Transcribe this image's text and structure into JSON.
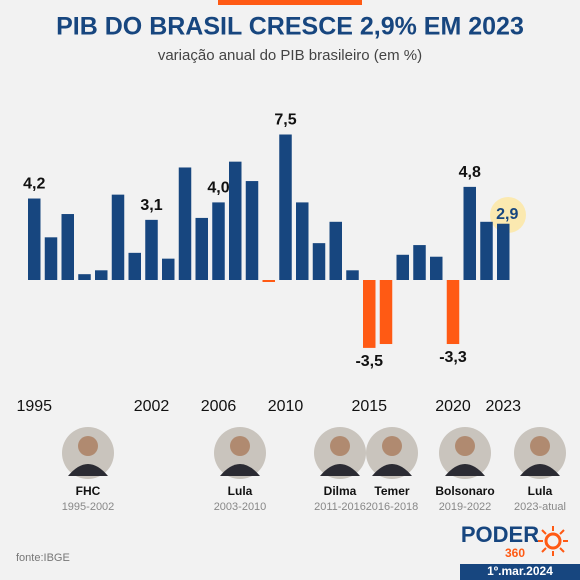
{
  "chart_data": {
    "type": "bar",
    "title": "PIB DO BRASIL CRESCE 2,9% EM 2023",
    "subtitle": "variação anual do PIB brasileiro (em %)",
    "categories": [
      "1995",
      null,
      null,
      null,
      null,
      null,
      null,
      "2002",
      null,
      null,
      null,
      "2006",
      null,
      null,
      null,
      "2010",
      null,
      null,
      null,
      null,
      "2015",
      null,
      null,
      null,
      null,
      "2020",
      null,
      null,
      "2023"
    ],
    "values": [
      4.2,
      2.2,
      3.4,
      0.3,
      0.5,
      4.4,
      1.4,
      3.1,
      1.1,
      5.8,
      3.2,
      4.0,
      6.1,
      5.1,
      -0.1,
      7.5,
      4.0,
      1.9,
      3.0,
      0.5,
      -3.5,
      -3.3,
      1.3,
      1.8,
      1.2,
      -3.3,
      4.8,
      3.0,
      2.9
    ],
    "value_labels": [
      "4,2",
      null,
      null,
      null,
      null,
      null,
      null,
      "3,1",
      null,
      null,
      null,
      "4,0",
      null,
      null,
      null,
      "7,5",
      null,
      null,
      null,
      null,
      "-3,5",
      null,
      null,
      null,
      null,
      "-3,3",
      "4,8",
      null,
      "2,9"
    ],
    "color": "#17467f",
    "negative_color": "#ff5a14",
    "source": "fonte:IBGE"
  },
  "presidents": [
    {
      "name": "FHC",
      "term": "1995-2002"
    },
    {
      "name": "Lula",
      "term": "2003-2010"
    },
    {
      "name": "Dilma",
      "term": "2011-2016"
    },
    {
      "name": "Temer",
      "term": "2016-2018"
    },
    {
      "name": "Bolsonaro",
      "term": "2019-2022"
    },
    {
      "name": "Lula",
      "term": "2023-atual"
    }
  ],
  "logo": {
    "main": "PODER",
    "number": "360"
  },
  "date": "1º.mar.2024"
}
